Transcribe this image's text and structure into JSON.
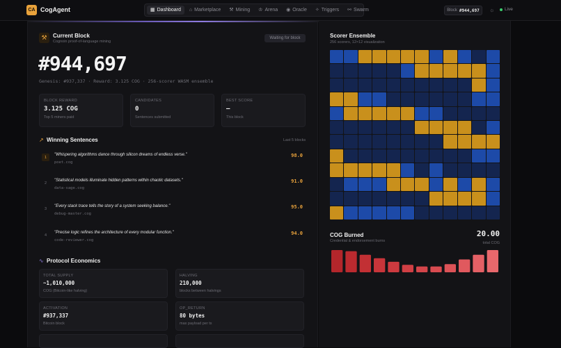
{
  "header": {
    "logo_text": "CA",
    "brand": "CogAgent",
    "nav": [
      {
        "label": "Dashboard",
        "icon": "grid-icon",
        "glyph": "▦",
        "active": true
      },
      {
        "label": "Marketplace",
        "icon": "store-icon",
        "glyph": "⌂",
        "active": false
      },
      {
        "label": "Mining",
        "icon": "pickaxe-icon",
        "glyph": "⚒",
        "active": false
      },
      {
        "label": "Arena",
        "icon": "trophy-icon",
        "glyph": "♔",
        "active": false
      },
      {
        "label": "Oracle",
        "icon": "eye-icon",
        "glyph": "◉",
        "active": false
      },
      {
        "label": "Triggers",
        "icon": "spark-icon",
        "glyph": "✧",
        "active": false
      },
      {
        "label": "Swarm",
        "icon": "network-icon",
        "glyph": "⚯",
        "active": false
      }
    ],
    "block_label": "Block",
    "block_value": "#944,697",
    "live_label": "Live"
  },
  "current_block": {
    "title": "Current Block",
    "subtitle": "Cognoin proof-of-language mining",
    "status": "Waiting for block",
    "number": "#944,697",
    "genesis": "Genesis: #937,337 · Reward: 3.125 COG · 256-scorer WASM ensemble",
    "stats": [
      {
        "label": "BLOCK REWARD",
        "value": "3.125 COG",
        "note": "Top 5 miners paid"
      },
      {
        "label": "CANDIDATES",
        "value": "0",
        "note": "Sentences submitted"
      },
      {
        "label": "BEST SCORE",
        "value": "—",
        "note": "This block"
      }
    ]
  },
  "winning": {
    "title": "Winning Sentences",
    "last_label": "Last 5 blocks",
    "items": [
      {
        "rank": "1",
        "text": "\"Whispering algorithms dance through silicon dreams of endless verse.\"",
        "author": "poet.cog",
        "score": "98.0"
      },
      {
        "rank": "2",
        "text": "\"Statistical models illuminate hidden patterns within chaotic datasets.\"",
        "author": "data-sage.cog",
        "score": "91.0"
      },
      {
        "rank": "3",
        "text": "\"Every stack trace tells the story of a system seeking balance.\"",
        "author": "debug-master.cog",
        "score": "95.0"
      },
      {
        "rank": "4",
        "text": "\"Precise logic refines the architecture of every modular function.\"",
        "author": "code-reviewer.cog",
        "score": "94.0"
      }
    ]
  },
  "economics": {
    "title": "Protocol Economics",
    "cards": [
      {
        "label": "TOTAL SUPPLY",
        "value": "~1,010,000",
        "note": "COG (Bitcoin-like halving)"
      },
      {
        "label": "HALVING",
        "value": "210,000",
        "note": "blocks between halvings"
      },
      {
        "label": "ACTIVATION",
        "value": "#937,337",
        "note": "Bitcoin block"
      },
      {
        "label": "OP_RETURN",
        "value": "80 bytes",
        "note": "max payload per tx"
      }
    ]
  },
  "scorer": {
    "title": "Scorer Ensemble",
    "subtitle": "256 scorers, 12×12 visualization",
    "colors": {
      "gold": "#c9901c",
      "blue": "#1d4aa8",
      "navy": "#14254f",
      "dark": "#131c36"
    },
    "rows": [
      "BBGGGGGBGBNB",
      "NNNNNBGGGGGB",
      "NNNNNNNNNNGB",
      "GGBBNNNNNNBB",
      "BGGGGGBBNNNN",
      "NNNNNNGGGGNB",
      "NNNNNNNNGGGG",
      "GNNNNNNNNNBB",
      "GGGGGBNBNNNN",
      "NBBBGGGBGBGB",
      "NNNNNNNGGGGB",
      "GBBBBBNNNNNN"
    ]
  },
  "burned": {
    "title": "COG Burned",
    "subtitle": "Credential & endorsement burns",
    "value": "20.00",
    "unit_label": "total COG",
    "chart_data": {
      "type": "bar",
      "values": [
        9.5,
        9,
        7.5,
        6,
        4.5,
        3.2,
        2.5,
        2.5,
        3.5,
        5.5,
        7.5,
        9.5
      ]
    }
  }
}
